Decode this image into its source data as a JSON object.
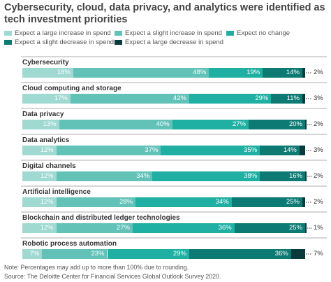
{
  "title": "Cybersecurity, cloud, data privacy, and analytics were identified as tech investment priorities",
  "legend": [
    {
      "label": "Expect a large increase in spend",
      "color": "#9fd9d2"
    },
    {
      "label": "Expect a slight increase in spend",
      "color": "#62c2b8"
    },
    {
      "label": "Expect no change",
      "color": "#1fb0a3"
    },
    {
      "label": "Expect a slight decrease in spend",
      "color": "#0d7a74"
    },
    {
      "label": "Expect a large decrease in spend",
      "color": "#0a3b3c"
    }
  ],
  "chart_data": {
    "type": "bar",
    "orientation": "horizontal",
    "stacked": true,
    "categories": [
      "Cybersecurity",
      "Cloud computing and storage",
      "Data privacy",
      "Data analytics",
      "Digital channels",
      "Artificial intelligence",
      "Blockchain and distributed ledger technologies",
      "Robotic process automation"
    ],
    "series": [
      {
        "name": "Expect a large increase in spend",
        "values": [
          18,
          17,
          13,
          12,
          12,
          12,
          12,
          7
        ]
      },
      {
        "name": "Expect a slight increase in spend",
        "values": [
          48,
          42,
          40,
          37,
          34,
          28,
          27,
          23
        ]
      },
      {
        "name": "Expect no change",
        "values": [
          19,
          29,
          27,
          35,
          38,
          34,
          36,
          29
        ]
      },
      {
        "name": "Expect a slight decrease in spend",
        "values": [
          14,
          11,
          20,
          14,
          16,
          25,
          25,
          36
        ]
      },
      {
        "name": "Expect a large decrease in spend",
        "values": [
          2,
          3,
          2,
          3,
          2,
          2,
          1,
          7
        ]
      }
    ],
    "value_labels": [
      [
        "18%",
        "48%",
        "19%",
        "14%",
        "2%"
      ],
      [
        "17%",
        "42%",
        "29%",
        "11%",
        "3%"
      ],
      [
        "13%",
        "40%",
        "27%",
        "20%",
        "2%"
      ],
      [
        "12%",
        "37%",
        "35%",
        "14%",
        "3%"
      ],
      [
        "12%",
        "34%",
        "38%",
        "16%",
        "2%"
      ],
      [
        "12%",
        "28%",
        "34%",
        "25%",
        "2%"
      ],
      [
        "12%",
        "27%",
        "36%",
        "25%",
        "1%"
      ],
      [
        "7%",
        "23%",
        "29%",
        "36%",
        "7%"
      ]
    ]
  },
  "notes": {
    "note": "Note: Percentages may add up to more than 100% due to rounding.",
    "source": "Source: The Deloitte Center for Financial Services Global Outlook Survey 2020."
  }
}
